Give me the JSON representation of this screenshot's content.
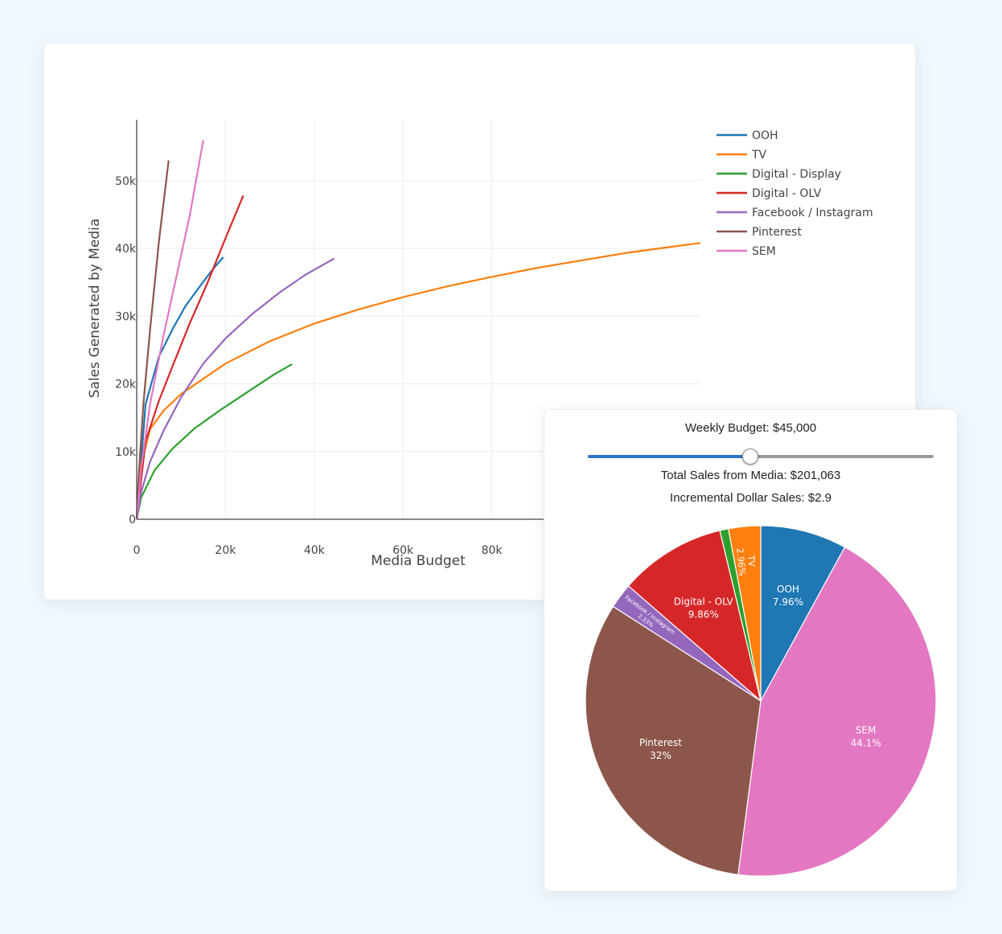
{
  "chart_data": [
    {
      "type": "line",
      "xlabel": "Media Budget",
      "ylabel": "Sales Generated by Media",
      "xlim": [
        0,
        127000
      ],
      "ylim": [
        0,
        59000
      ],
      "x_ticks": [
        0,
        20000,
        40000,
        60000,
        80000
      ],
      "x_tick_labels": [
        "0",
        "20k",
        "40k",
        "60k",
        "80k"
      ],
      "y_ticks": [
        0,
        10000,
        20000,
        30000,
        40000,
        50000
      ],
      "y_tick_labels": [
        "0",
        "10k",
        "20k",
        "30k",
        "40k",
        "50k"
      ],
      "grid": true,
      "legend_position": "top-right",
      "series": [
        {
          "name": "OOH",
          "color": "#1f77b4",
          "x": [
            0,
            2000,
            5000,
            8000,
            11000,
            14000,
            17000,
            19500
          ],
          "y": [
            0,
            17000,
            24000,
            28000,
            31500,
            34200,
            36800,
            38700
          ]
        },
        {
          "name": "TV",
          "color": "#ff7f0e",
          "x": [
            0,
            1000,
            3000,
            6000,
            10000,
            20000,
            30000,
            40000,
            50000,
            60000,
            70000,
            80000,
            90000,
            100000,
            110000,
            120000,
            127000
          ],
          "y": [
            0,
            8000,
            13300,
            16000,
            18500,
            23000,
            26300,
            28900,
            31000,
            32800,
            34400,
            35800,
            37100,
            38200,
            39300,
            40200,
            40800
          ]
        },
        {
          "name": "Digital - Display",
          "color": "#2ca02c",
          "x": [
            0,
            1000,
            4000,
            8000,
            13000,
            19000,
            25000,
            31000,
            35000
          ],
          "y": [
            0,
            3200,
            7200,
            10400,
            13400,
            16200,
            18800,
            21400,
            22900
          ]
        },
        {
          "name": "Digital - OLV",
          "color": "#d62728",
          "x": [
            0,
            2000,
            5000,
            8000,
            12000,
            16000,
            20000,
            24000
          ],
          "y": [
            0,
            11500,
            17500,
            22500,
            29000,
            35000,
            41500,
            47800
          ]
        },
        {
          "name": "Facebook / Instagram",
          "color": "#9467bd",
          "x": [
            0,
            1000,
            3000,
            6000,
            10000,
            15000,
            20000,
            26000,
            32000,
            38000,
            44500
          ],
          "y": [
            0,
            4000,
            8500,
            13000,
            18000,
            23000,
            26700,
            30300,
            33400,
            36100,
            38500
          ]
        },
        {
          "name": "Pinterest",
          "color": "#8c564b",
          "x": [
            0,
            500,
            1500,
            3000,
            5000,
            7200
          ],
          "y": [
            0,
            7000,
            17000,
            28000,
            41000,
            53000
          ]
        },
        {
          "name": "SEM",
          "color": "#e377c2",
          "x": [
            0,
            1000,
            3000,
            6000,
            9000,
            12000,
            15000
          ],
          "y": [
            0,
            7500,
            17000,
            27000,
            36000,
            45000,
            56000
          ]
        }
      ]
    },
    {
      "type": "pie",
      "start_angle_deg": 0,
      "direction": "clockwise",
      "slices": [
        {
          "label": "OOH",
          "value": 7.96,
          "pct_label": "7.96%",
          "color": "#1f77b4"
        },
        {
          "label": "SEM",
          "value": 44.1,
          "pct_label": "44.1%",
          "color": "#e377c2"
        },
        {
          "label": "Pinterest",
          "value": 32,
          "pct_label": "32%",
          "color": "#8c564b"
        },
        {
          "label": "Facebook / Instagram",
          "value": 2.33,
          "pct_label": "2.33%",
          "color": "#9467bd"
        },
        {
          "label": "Digital - OLV",
          "value": 9.86,
          "pct_label": "9.86%",
          "color": "#d62728"
        },
        {
          "label": "Digital - Display",
          "value": 0.79,
          "pct_label": "",
          "color": "#2ca02c"
        },
        {
          "label": "TV",
          "value": 2.96,
          "pct_label": "2.96%",
          "color": "#ff7f0e"
        }
      ]
    }
  ],
  "controls": {
    "budget_title": "Weekly Budget: $45,000",
    "budget_fraction": 0.47,
    "total_sales": "Total Sales from Media: $201,063",
    "incremental_sales": "Incremental Dollar Sales: $2.9"
  }
}
